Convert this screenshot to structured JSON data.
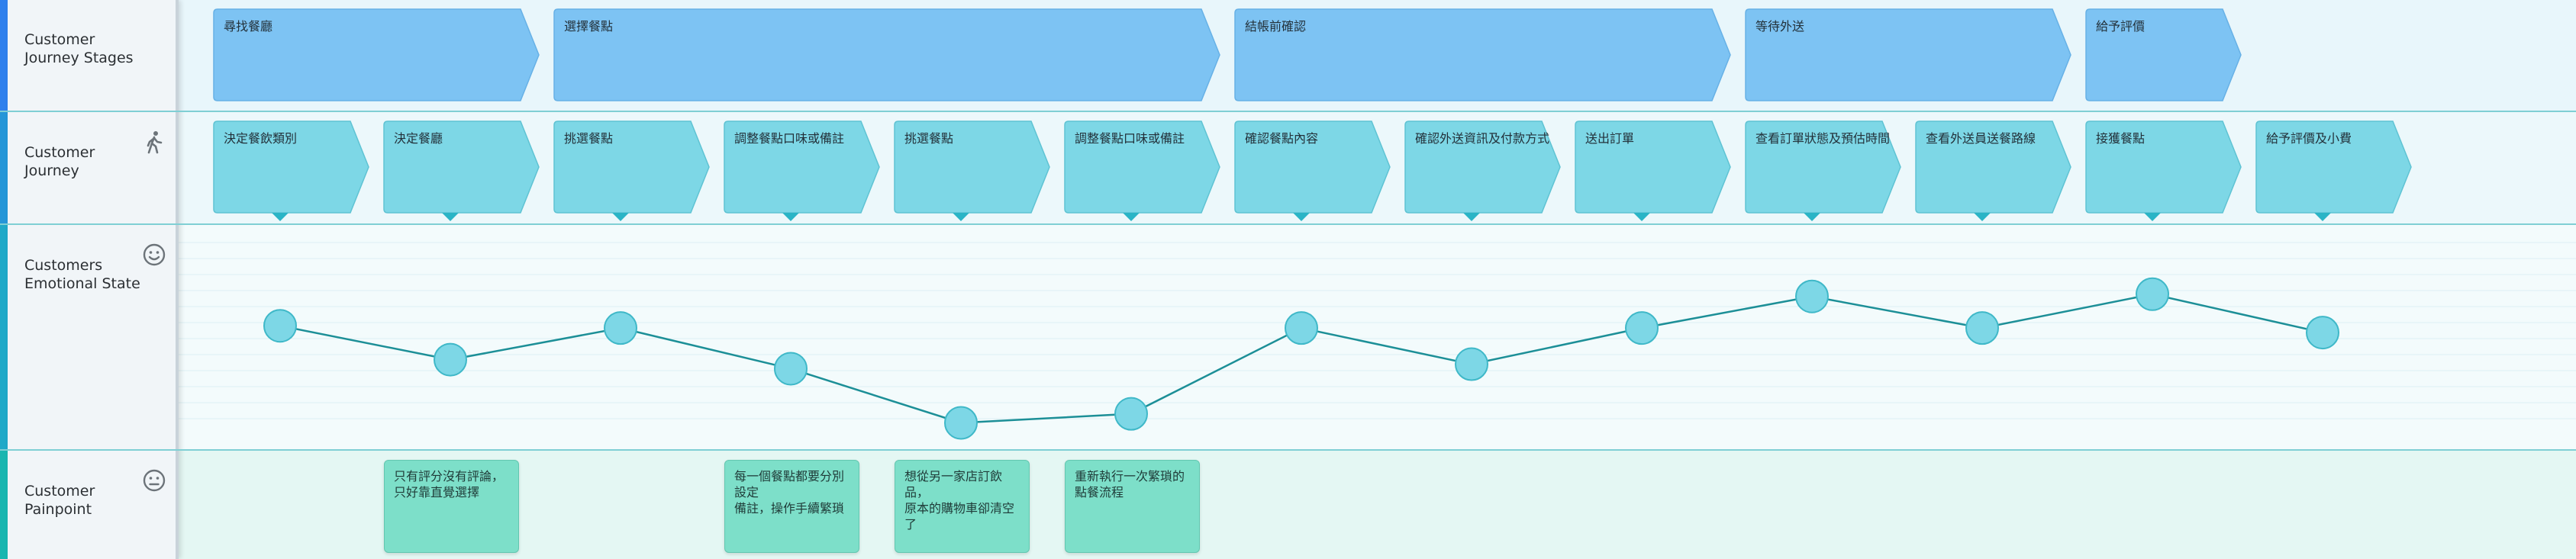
{
  "colors": {
    "stage_fill": "#7dc3f3",
    "step_fill": "#7dd7e6",
    "emotion_node": "#7dd7e6",
    "emotion_line": "#1c8f97",
    "pain_fill": "#7ddfc9",
    "accent_top": "#2f80ed",
    "accent_bottom": "#19b6b0"
  },
  "rows": {
    "stages": {
      "label": "Customer\nJourney Stages"
    },
    "journey": {
      "label": "Customer\nJourney",
      "icon": "walking-person-icon"
    },
    "emotion": {
      "label": "Customers\nEmotional State",
      "icon": "smiley-face-icon"
    },
    "painpoint": {
      "label": "Customer\nPainpoint",
      "icon": "neutral-face-icon"
    }
  },
  "stages": [
    "尋找餐廳",
    "選擇餐點",
    "結帳前確認",
    "等待外送",
    "給予評價"
  ],
  "steps": [
    "決定餐飲類別",
    "決定餐廳",
    "挑選餐點",
    "調整餐點口味或備註",
    "挑選餐點",
    "調整餐點口味或備註",
    "確認餐點內容",
    "確認外送資訊及付款方式",
    "送出訂單",
    "查看訂單狀態及預估時間",
    "查看外送員送餐路線",
    "接獲餐點",
    "給予評價及小費"
  ],
  "emotion_levels": [
    0.55,
    0.4,
    0.54,
    0.36,
    0.12,
    0.16,
    0.54,
    0.38,
    0.54,
    0.68,
    0.54,
    0.69,
    0.52
  ],
  "painpoints": [
    {
      "step": 1,
      "text": "只有評分沒有評論，\n只好靠直覺選擇"
    },
    {
      "step": 3,
      "text": "每一個餐點都要分別設定\n備註，操作手續繁瑣"
    },
    {
      "step": 4,
      "text": "想從另一家店訂飲品，\n原本的購物車卻清空了"
    },
    {
      "step": 5,
      "text": "重新執行一次繁瑣的\n點餐流程"
    }
  ]
}
